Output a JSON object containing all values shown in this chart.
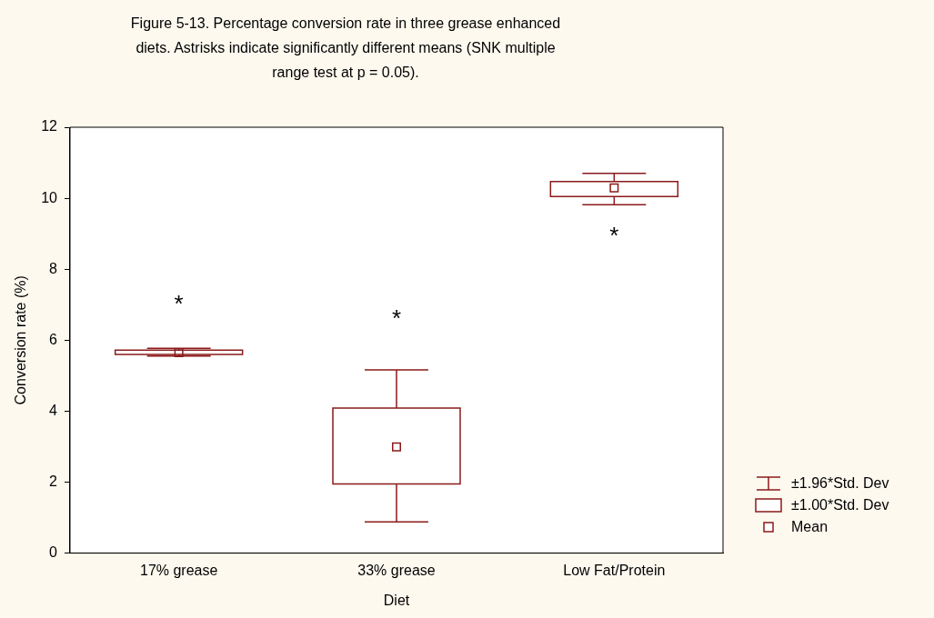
{
  "chart_data": {
    "type": "box",
    "title": "Figure 5-13. Percentage conversion rate in three grease enhanced diets. Astrisks indicate significantly different means (SNK multiple range test at p = 0.05).",
    "xlabel": "Diet",
    "ylabel": "Conversion rate (%)",
    "categories": [
      "17% grease",
      "33% grease",
      "Low Fat/Protein"
    ],
    "boxes": [
      {
        "low": 5.55,
        "q1": 5.6,
        "q3": 5.72,
        "high": 5.77,
        "mean": 5.65
      },
      {
        "low": 0.88,
        "q1": 1.95,
        "q3": 4.09,
        "high": 5.16,
        "mean": 2.99
      },
      {
        "low": 9.82,
        "q1": 10.05,
        "q3": 10.47,
        "high": 10.7,
        "mean": 10.29
      }
    ],
    "color": "#8b1a1a",
    "ylim": [
      0,
      12
    ],
    "yticks": [
      0,
      2,
      4,
      6,
      8,
      10,
      12
    ],
    "grid": false,
    "marker": "square",
    "annotations": [
      "*",
      "*",
      "*",
      "±1.96*Std. Dev",
      "±1.00*Std. Dev",
      "Mean"
    ]
  }
}
